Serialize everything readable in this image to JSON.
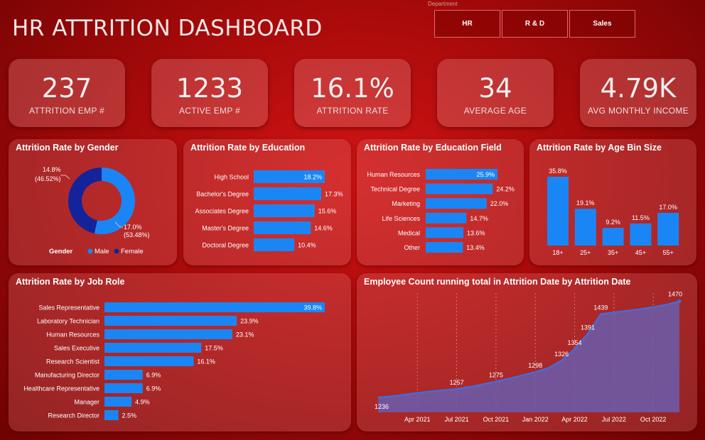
{
  "header": {
    "title": "HR ATTRITION DASHBOARD",
    "slicer_label": "Department",
    "slicers": [
      "HR",
      "R & D",
      "Sales"
    ]
  },
  "kpis": [
    {
      "value": "237",
      "label": "ATTRITION EMP #"
    },
    {
      "value": "1233",
      "label": "ACTIVE EMP #"
    },
    {
      "value": "16.1%",
      "label": "ATTRITION RATE"
    },
    {
      "value": "34",
      "label": "AVERAGE AGE"
    },
    {
      "value": "4.79K",
      "label": "AVG MONTHLY INCOME"
    }
  ],
  "colors": {
    "bar": "#1a86f5",
    "female": "#14239a",
    "male": "#1a86f5",
    "line": "#3f6fe0",
    "area": "#6a5dae"
  },
  "chart_data": [
    {
      "type": "pie",
      "title": "Attrition Rate by Gender",
      "legend_title": "Gender",
      "slices": [
        {
          "name": "Male",
          "value": 17.0,
          "label": "17.0%",
          "share": "(53.48%)",
          "pct": 53.48
        },
        {
          "name": "Female",
          "value": 14.8,
          "label": "14.8%",
          "share": "(46.52%)",
          "pct": 46.52
        }
      ]
    },
    {
      "type": "bar",
      "title": "Attrition Rate by Education",
      "categories": [
        "High School",
        "Bachelor's Degree",
        "Associates Degree",
        "Master's Degree",
        "Doctoral Degree"
      ],
      "values": [
        18.2,
        17.3,
        15.6,
        14.6,
        10.4
      ],
      "labels": [
        "18.2%",
        "17.3%",
        "15.6%",
        "14.6%",
        "10.4%"
      ]
    },
    {
      "type": "bar",
      "title": "Attrition Rate by Education Field",
      "categories": [
        "Human Resources",
        "Technical Degree",
        "Marketing",
        "Life Sciences",
        "Medical",
        "Other"
      ],
      "values": [
        25.9,
        24.2,
        22.0,
        14.7,
        13.6,
        13.4
      ],
      "labels": [
        "25.9%",
        "24.2%",
        "22.0%",
        "14.7%",
        "13.6%",
        "13.4%"
      ]
    },
    {
      "type": "bar",
      "title": "Attrition Rate by Age Bin Size",
      "categories": [
        "18+",
        "25+",
        "35+",
        "45+",
        "55+"
      ],
      "values": [
        35.8,
        19.1,
        9.2,
        11.5,
        17.0
      ],
      "labels": [
        "35.8%",
        "19.1%",
        "9.2%",
        "11.5%",
        "17.0%"
      ]
    },
    {
      "type": "bar",
      "title": "Attrition Rate by Job Role",
      "categories": [
        "Sales Representative",
        "Laboratory Technician",
        "Human Resources",
        "Sales Executive",
        "Research Scientist",
        "Manufacturing Director",
        "Healthcare Representative",
        "Manager",
        "Research Director"
      ],
      "values": [
        39.8,
        23.9,
        23.1,
        17.5,
        16.1,
        6.9,
        6.9,
        4.9,
        2.5
      ],
      "labels": [
        "39.8%",
        "23.9%",
        "23.1%",
        "17.5%",
        "16.1%",
        "6.9%",
        "6.9%",
        "4.9%",
        "2.5%"
      ]
    },
    {
      "type": "area",
      "title": "Employee Count running total in Attrition Date by Attrition Date",
      "x_ticks": [
        "Apr 2021",
        "Jul 2021",
        "Oct 2021",
        "Jan 2022",
        "Apr 2022",
        "Jul 2022",
        "Oct 2022"
      ],
      "points": [
        {
          "x": "2021-01",
          "y": 1236,
          "label": "1236"
        },
        {
          "x": "2021-02",
          "y": 1239
        },
        {
          "x": "2021-03",
          "y": 1243
        },
        {
          "x": "2021-04",
          "y": 1247
        },
        {
          "x": "2021-05",
          "y": 1251
        },
        {
          "x": "2021-06",
          "y": 1254
        },
        {
          "x": "2021-07",
          "y": 1257,
          "label": "1257"
        },
        {
          "x": "2021-08",
          "y": 1262
        },
        {
          "x": "2021-09",
          "y": 1268
        },
        {
          "x": "2021-10",
          "y": 1275,
          "label": "1275"
        },
        {
          "x": "2021-11",
          "y": 1282
        },
        {
          "x": "2021-12",
          "y": 1290
        },
        {
          "x": "2022-01",
          "y": 1298,
          "label": "1298"
        },
        {
          "x": "2022-02",
          "y": 1308
        },
        {
          "x": "2022-03",
          "y": 1326,
          "label": "1326"
        },
        {
          "x": "2022-04",
          "y": 1354,
          "label": "1354"
        },
        {
          "x": "2022-05",
          "y": 1391,
          "label": "1391"
        },
        {
          "x": "2022-06",
          "y": 1439,
          "label": "1439"
        },
        {
          "x": "2022-07",
          "y": 1443
        },
        {
          "x": "2022-08",
          "y": 1447
        },
        {
          "x": "2022-09",
          "y": 1451
        },
        {
          "x": "2022-10",
          "y": 1456
        },
        {
          "x": "2022-11",
          "y": 1462
        },
        {
          "x": "2022-12",
          "y": 1470,
          "label": "1470"
        }
      ],
      "ylim": [
        1200,
        1490
      ]
    }
  ]
}
